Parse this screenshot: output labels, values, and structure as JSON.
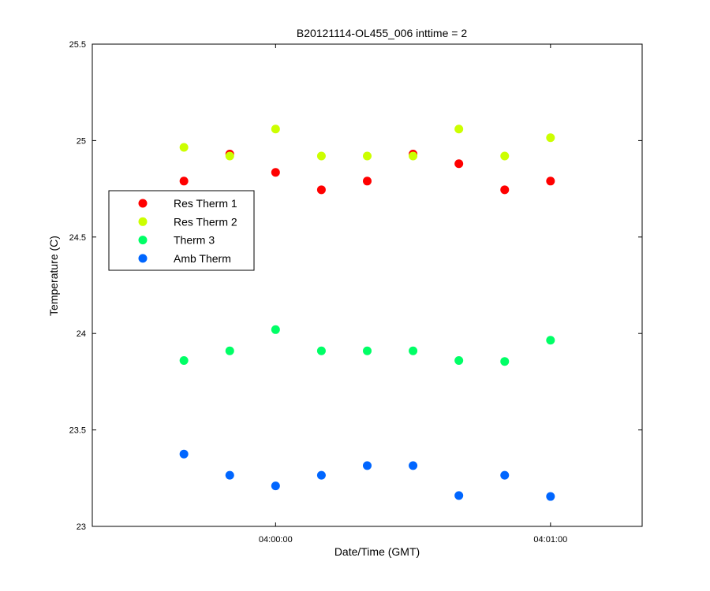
{
  "chart_data": {
    "type": "scatter",
    "title": "B20121114-OL455_006 inttime = 2",
    "xlabel": "Date/Time (GMT)",
    "ylabel": "Temperature (C)",
    "ylim": [
      23,
      25.5
    ],
    "yticks": [
      23,
      23.5,
      24,
      24.5,
      25,
      25.5
    ],
    "ytick_labels": [
      "23",
      "23.5",
      "24",
      "24.5",
      "25",
      "25.5"
    ],
    "xlim": [
      "03:59:20",
      "04:01:20"
    ],
    "xticks": [
      "04:00:00",
      "04:01:00"
    ],
    "xtick_labels": [
      "04:00:00",
      "04:01:00"
    ],
    "x": [
      "03:59:40",
      "03:59:50",
      "04:00:00",
      "04:00:10",
      "04:00:20",
      "04:00:30",
      "04:00:40",
      "04:00:50",
      "04:01:00"
    ],
    "grid": false,
    "legend_position": "upper-left",
    "series": [
      {
        "name": "Res Therm 1",
        "color": "#ff0000",
        "values": [
          24.79,
          24.93,
          24.835,
          24.745,
          24.79,
          24.93,
          24.88,
          24.745,
          24.79
        ]
      },
      {
        "name": "Res Therm 2",
        "color": "#ccff00",
        "values": [
          24.965,
          24.92,
          25.06,
          24.92,
          24.92,
          24.92,
          25.06,
          24.92,
          25.015
        ]
      },
      {
        "name": "Therm 3",
        "color": "#00ff66",
        "values": [
          23.86,
          23.91,
          24.02,
          23.91,
          23.91,
          23.91,
          23.86,
          23.855,
          23.965
        ]
      },
      {
        "name": "Amb Therm",
        "color": "#0066ff",
        "values": [
          23.375,
          23.265,
          23.21,
          23.265,
          23.315,
          23.315,
          23.16,
          23.265,
          23.155
        ]
      }
    ]
  }
}
